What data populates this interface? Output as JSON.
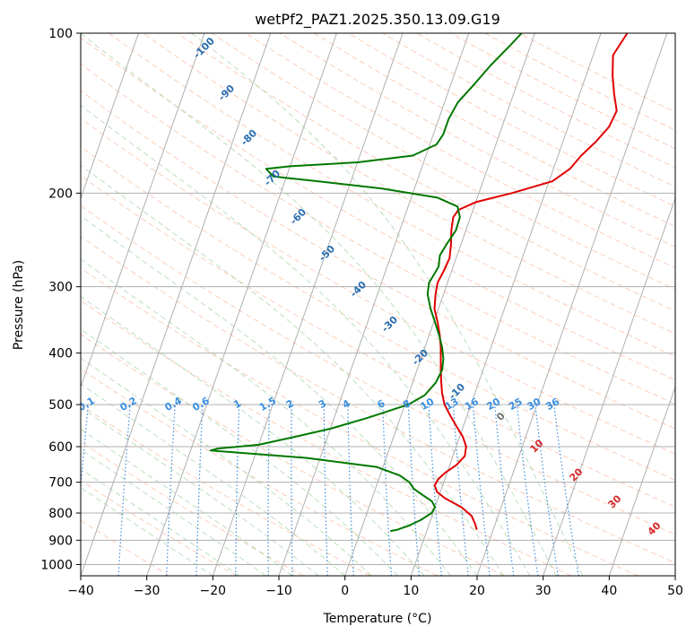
{
  "chart_data": {
    "type": "skew-t",
    "title": "wetPf2_PAZ1.2025.350.13.09.G19",
    "xlabel": "Temperature (°C)",
    "ylabel": "Pressure (hPa)",
    "xlim": [
      -40,
      50
    ],
    "ylim": [
      1050,
      100
    ],
    "y_scale": "log",
    "x_ticks": [
      -40,
      -30,
      -20,
      -10,
      0,
      10,
      20,
      30,
      40,
      50
    ],
    "y_ticks": [
      100,
      200,
      300,
      400,
      500,
      600,
      700,
      800,
      900,
      1000
    ],
    "grid": true,
    "colors": {
      "temperature": "#e00000",
      "dewpoint": "#007800",
      "isotherm": "#b0b0b0",
      "dry_adiabat": "#f4a582",
      "moist_adiabat": "#9fd29f",
      "mixing_ratio": "#3a8fe0",
      "isotherm_label": "#2a6db0",
      "dry_adiabat_label": "#d62728",
      "zero_label": "#707070"
    },
    "isotherm_labels": [
      "-100",
      "-90",
      "-80",
      "-70",
      "-60",
      "-50",
      "-40",
      "-30",
      "-20",
      "-10"
    ],
    "zero_label": "0",
    "mixing_ratio_labels": [
      "0.1",
      "0.2",
      "0.4",
      "0.6",
      "1",
      "1.5",
      "2",
      "3",
      "4",
      "6",
      "8",
      "10",
      "13",
      "16",
      "20",
      "25",
      "30",
      "36"
    ],
    "dry_adiabat_labels": [
      "10",
      "20",
      "30",
      "40"
    ],
    "series": [
      {
        "key": "temperature",
        "points": [
          [
            17.5,
            860
          ],
          [
            17.0,
            840
          ],
          [
            16.0,
            810
          ],
          [
            14.0,
            780
          ],
          [
            11.0,
            750
          ],
          [
            9.5,
            730
          ],
          [
            8.8,
            710
          ],
          [
            9.0,
            690
          ],
          [
            9.8,
            670
          ],
          [
            11.0,
            650
          ],
          [
            11.8,
            625
          ],
          [
            11.5,
            600
          ],
          [
            10.5,
            575
          ],
          [
            9.0,
            550
          ],
          [
            7.5,
            525
          ],
          [
            6.0,
            500
          ],
          [
            5.0,
            475
          ],
          [
            4.2,
            450
          ],
          [
            3.6,
            430
          ],
          [
            3.0,
            410
          ],
          [
            2.4,
            390
          ],
          [
            1.6,
            370
          ],
          [
            0.6,
            350
          ],
          [
            -0.6,
            330
          ],
          [
            -1.2,
            310
          ],
          [
            -1.5,
            295
          ],
          [
            -1.2,
            280
          ],
          [
            -1.0,
            265
          ],
          [
            -1.5,
            250
          ],
          [
            -2.2,
            235
          ],
          [
            -2.6,
            222
          ],
          [
            -2.2,
            215
          ],
          [
            0.0,
            208
          ],
          [
            5.0,
            200
          ],
          [
            10.5,
            190
          ],
          [
            12.5,
            180
          ],
          [
            13.5,
            170
          ],
          [
            15.0,
            160
          ],
          [
            16.2,
            150
          ],
          [
            16.5,
            140
          ],
          [
            15.2,
            130
          ],
          [
            14.0,
            120
          ],
          [
            13.0,
            110
          ],
          [
            14.0,
            100
          ]
        ]
      },
      {
        "key": "dewpoint",
        "points": [
          [
            4.5,
            865
          ],
          [
            5.5,
            860
          ],
          [
            7.0,
            845
          ],
          [
            8.5,
            825
          ],
          [
            9.8,
            800
          ],
          [
            10.0,
            780
          ],
          [
            9.2,
            760
          ],
          [
            7.5,
            740
          ],
          [
            5.8,
            720
          ],
          [
            4.8,
            700
          ],
          [
            3.0,
            680
          ],
          [
            -1.0,
            655
          ],
          [
            -12.0,
            630
          ],
          [
            -27.0,
            610
          ],
          [
            -26.0,
            605
          ],
          [
            -20.0,
            595
          ],
          [
            -15.0,
            575
          ],
          [
            -10.0,
            555
          ],
          [
            -5.0,
            530
          ],
          [
            0.5,
            500
          ],
          [
            2.5,
            480
          ],
          [
            3.5,
            455
          ],
          [
            3.8,
            430
          ],
          [
            3.4,
            410
          ],
          [
            2.6,
            390
          ],
          [
            1.5,
            370
          ],
          [
            0.2,
            350
          ],
          [
            -1.2,
            330
          ],
          [
            -2.4,
            310
          ],
          [
            -2.8,
            295
          ],
          [
            -2.5,
            285
          ],
          [
            -2.2,
            275
          ],
          [
            -2.6,
            262
          ],
          [
            -2.2,
            250
          ],
          [
            -1.5,
            235
          ],
          [
            -1.6,
            222
          ],
          [
            -2.5,
            212
          ],
          [
            -6.0,
            204
          ],
          [
            -15.0,
            196
          ],
          [
            -25.0,
            190
          ],
          [
            -32.0,
            186
          ],
          [
            -33.5,
            180
          ],
          [
            -30.0,
            178
          ],
          [
            -20.0,
            175
          ],
          [
            -12.0,
            170
          ],
          [
            -9.0,
            162
          ],
          [
            -8.5,
            155
          ],
          [
            -8.5,
            145
          ],
          [
            -8.0,
            135
          ],
          [
            -6.5,
            125
          ],
          [
            -5.0,
            115
          ],
          [
            -3.0,
            105
          ],
          [
            -2.0,
            100
          ]
        ]
      }
    ]
  }
}
